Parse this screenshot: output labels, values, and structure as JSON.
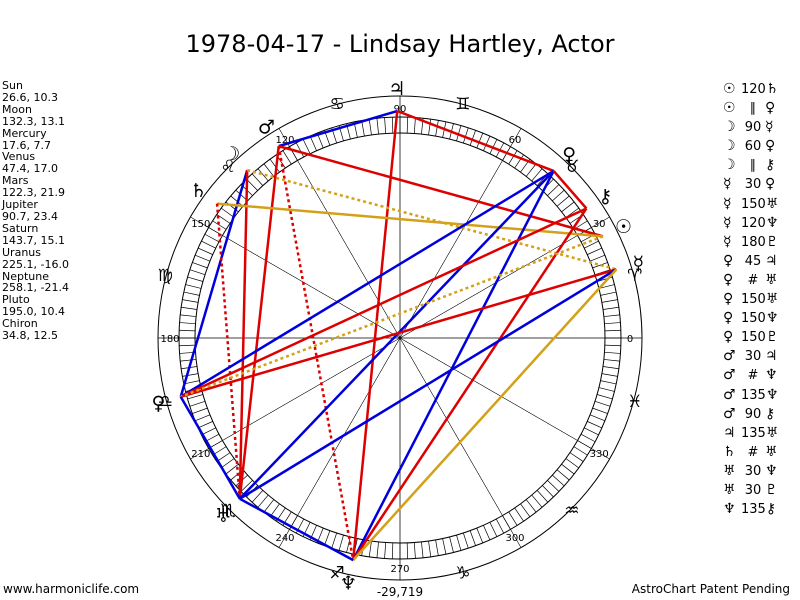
{
  "title": "1978-04-17 - Lindsay Hartley, Actor",
  "planets": [
    {
      "name": "Sun",
      "pos": "26.6, 10.3"
    },
    {
      "name": "Moon",
      "pos": "132.3, 13.1"
    },
    {
      "name": "Mercury",
      "pos": "17.6, 7.7"
    },
    {
      "name": "Venus",
      "pos": "47.4, 17.0"
    },
    {
      "name": "Mars",
      "pos": "122.3, 21.9"
    },
    {
      "name": "Jupiter",
      "pos": "90.7, 23.4"
    },
    {
      "name": "Saturn",
      "pos": "143.7, 15.1"
    },
    {
      "name": "Uranus",
      "pos": "225.1, -16.0"
    },
    {
      "name": "Neptune",
      "pos": "258.1, -21.4"
    },
    {
      "name": "Pluto",
      "pos": "195.0, 10.4"
    },
    {
      "name": "Chiron",
      "pos": "34.8, 12.5"
    }
  ],
  "aspects": [
    {
      "p1": "☉",
      "asp": "120",
      "p2": "♄"
    },
    {
      "p1": "☉",
      "asp": "∥",
      "p2": "♀"
    },
    {
      "p1": "☽",
      "asp": "90",
      "p2": "☿"
    },
    {
      "p1": "☽",
      "asp": "60",
      "p2": "♀"
    },
    {
      "p1": "☽",
      "asp": "∥",
      "p2": "⚷"
    },
    {
      "p1": "☿",
      "asp": "30",
      "p2": "♀"
    },
    {
      "p1": "☿",
      "asp": "150",
      "p2": "♅"
    },
    {
      "p1": "☿",
      "asp": "120",
      "p2": "♆"
    },
    {
      "p1": "☿",
      "asp": "180",
      "p2": "♇"
    },
    {
      "p1": "♀",
      "asp": "45",
      "p2": "♃"
    },
    {
      "p1": "♀",
      "asp": "#",
      "p2": "♅"
    },
    {
      "p1": "♀",
      "asp": "150",
      "p2": "♅"
    },
    {
      "p1": "♀",
      "asp": "150",
      "p2": "♆"
    },
    {
      "p1": "♀",
      "asp": "150",
      "p2": "♇"
    },
    {
      "p1": "♂",
      "asp": "30",
      "p2": "♃"
    },
    {
      "p1": "♂",
      "asp": "#",
      "p2": "♆"
    },
    {
      "p1": "♂",
      "asp": "135",
      "p2": "♆"
    },
    {
      "p1": "♂",
      "asp": "90",
      "p2": "⚷"
    },
    {
      "p1": "♃",
      "asp": "135",
      "p2": "♅"
    },
    {
      "p1": "♄",
      "asp": "#",
      "p2": "♅"
    },
    {
      "p1": "♅",
      "asp": "30",
      "p2": "♆"
    },
    {
      "p1": "♅",
      "asp": "30",
      "p2": "♇"
    },
    {
      "p1": "♆",
      "asp": "135",
      "p2": "⚷"
    }
  ],
  "wheel": {
    "degree_labels": [
      "0",
      "30",
      "60",
      "90",
      "120",
      "150",
      "180",
      "210",
      "240",
      "270",
      "300",
      "330"
    ],
    "bottom_label": "-29,719",
    "zodiac_glyphs": [
      "♈",
      "♉",
      "♊",
      "♋",
      "♌",
      "♍",
      "♎",
      "♏",
      "♐",
      "♑",
      "♒",
      "♓"
    ],
    "planet_glyphs": [
      {
        "name": "sun",
        "glyph": "☉",
        "lon": 26.6
      },
      {
        "name": "moon",
        "glyph": "☽",
        "lon": 132.3
      },
      {
        "name": "mercury",
        "glyph": "☿",
        "lon": 17.6
      },
      {
        "name": "venus",
        "glyph": "♀",
        "lon": 47.4
      },
      {
        "name": "mars",
        "glyph": "♂",
        "lon": 122.3
      },
      {
        "name": "jupiter",
        "glyph": "♃",
        "lon": 90.7
      },
      {
        "name": "saturn",
        "glyph": "♄",
        "lon": 143.7
      },
      {
        "name": "uranus",
        "glyph": "♅",
        "lon": 225.1
      },
      {
        "name": "neptune",
        "glyph": "♆",
        "lon": 258.1
      },
      {
        "name": "pluto",
        "glyph": "♀",
        "lon": 195.0
      },
      {
        "name": "chiron",
        "glyph": "⚷",
        "lon": 34.8
      }
    ],
    "colors": {
      "blue": "#0000dd",
      "red": "#dd0000",
      "gold": "#d4a017"
    }
  },
  "footer": {
    "left": "www.harmoniclife.com",
    "right": "AstroChart Patent Pending"
  }
}
